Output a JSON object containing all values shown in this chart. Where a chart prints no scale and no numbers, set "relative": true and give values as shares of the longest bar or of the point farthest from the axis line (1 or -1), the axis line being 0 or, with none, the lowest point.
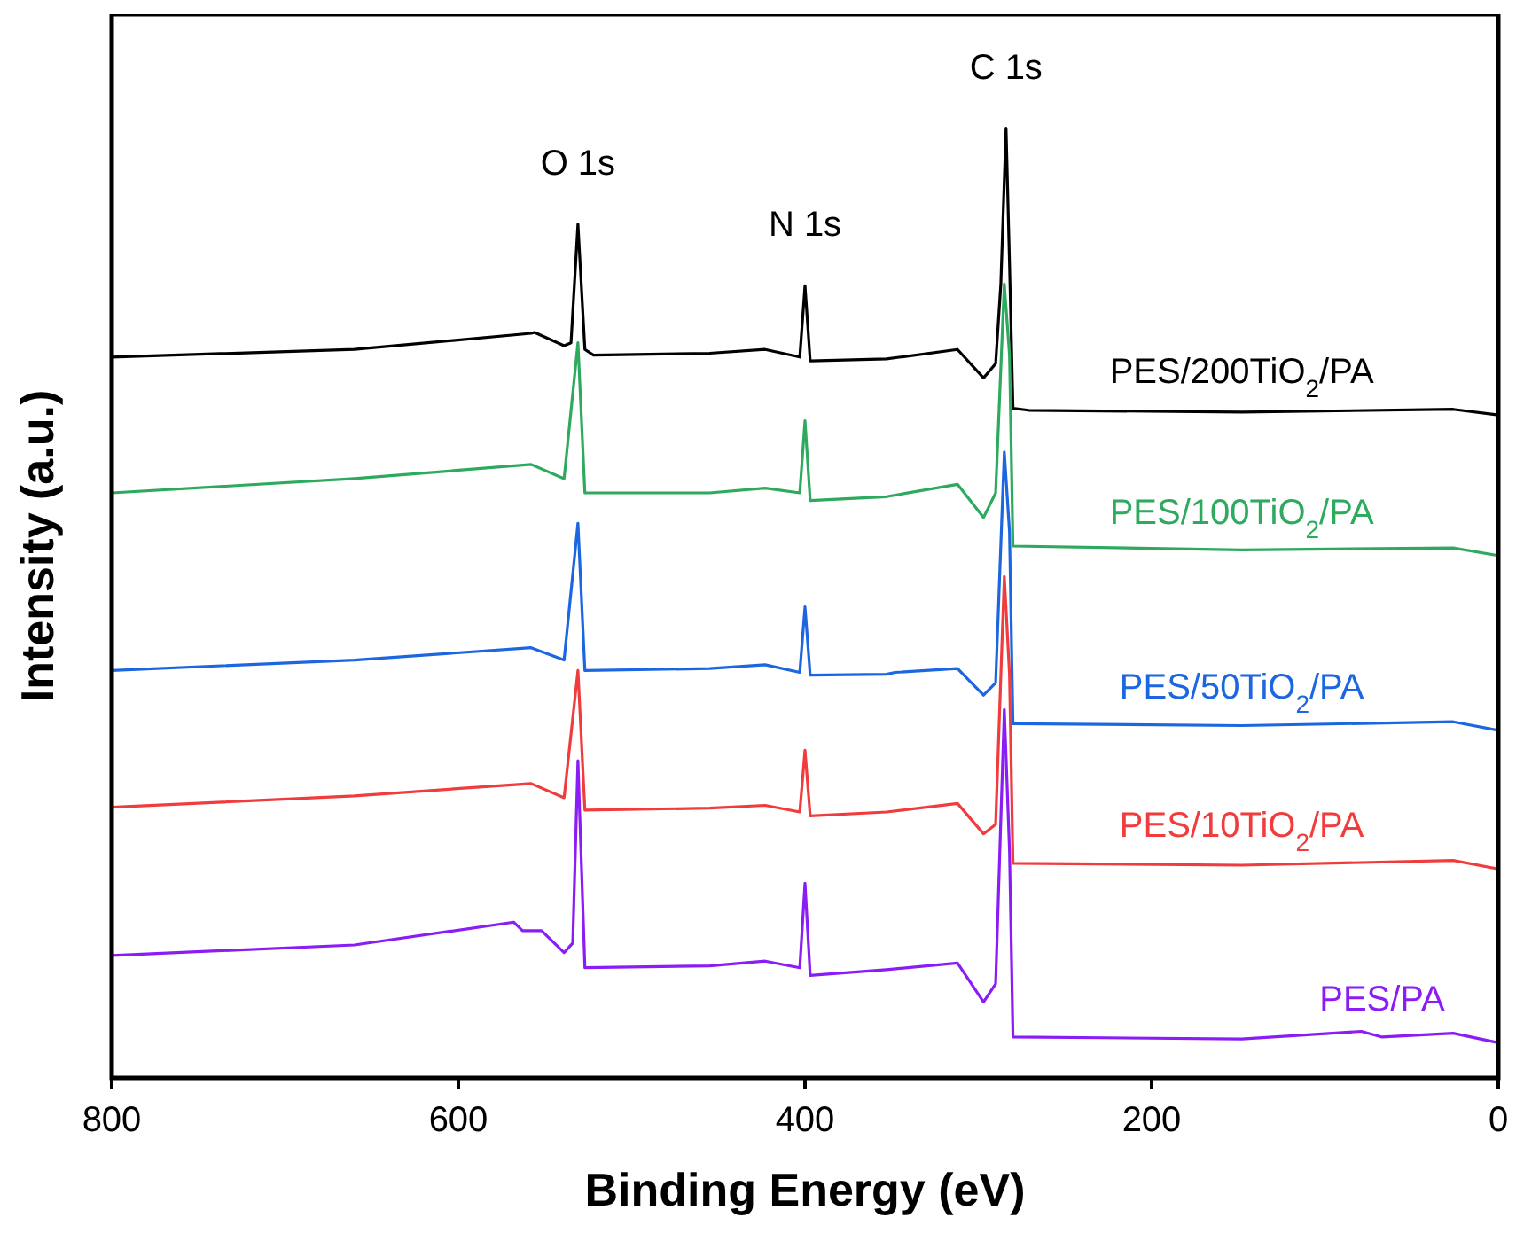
{
  "chart_data": {
    "type": "line",
    "relative": true,
    "xlabel": "Binding Energy (eV)",
    "ylabel": "Intensity (a.u.)",
    "xlim": [
      800,
      0
    ],
    "xticks": [
      800,
      600,
      400,
      200,
      0
    ],
    "grid": false,
    "annotations": [
      {
        "text": "O 1s",
        "x": 531,
        "y": 0.899
      },
      {
        "text": "N 1s",
        "x": 400,
        "y": 0.834
      },
      {
        "text": "C 1s",
        "x": 284,
        "y": 1
      }
    ],
    "series": [
      {
        "name": "PES/200TiO$_{2}$/PA",
        "color": "#000000",
        "x": [
          800,
          660,
          558,
          556,
          539,
          535,
          531,
          527,
          522,
          455,
          423,
          403,
          400,
          397,
          353,
          312,
          297,
          290,
          287,
          284,
          282,
          280,
          271,
          148,
          26,
          0
        ],
        "values": [
          0.759,
          0.767,
          0.784,
          0.785,
          0.771,
          0.774,
          0.899,
          0.767,
          0.761,
          0.763,
          0.767,
          0.759,
          0.834,
          0.755,
          0.757,
          0.767,
          0.737,
          0.752,
          0.836,
          1,
          0.858,
          0.705,
          0.703,
          0.701,
          0.704,
          0.698
        ]
      },
      {
        "name": "PES/100TiO$_{2}$/PA",
        "color": "#2eaa5e",
        "x": [
          800,
          660,
          558,
          539,
          531,
          527,
          455,
          423,
          403,
          400,
          397,
          353,
          312,
          297,
          290,
          285,
          282,
          280,
          148,
          26,
          0
        ],
        "values": [
          0.616,
          0.631,
          0.646,
          0.631,
          0.774,
          0.616,
          0.616,
          0.621,
          0.616,
          0.692,
          0.608,
          0.612,
          0.625,
          0.59,
          0.616,
          0.836,
          0.761,
          0.56,
          0.556,
          0.558,
          0.55
        ]
      },
      {
        "name": "PES/50TiO$_{2}$/PA",
        "color": "#1c66e0",
        "x": [
          800,
          660,
          558,
          539,
          531,
          527,
          455,
          423,
          403,
          400,
          397,
          353,
          348,
          312,
          297,
          290,
          285,
          282,
          280,
          148,
          26,
          0
        ],
        "values": [
          0.429,
          0.44,
          0.453,
          0.44,
          0.584,
          0.429,
          0.431,
          0.435,
          0.427,
          0.496,
          0.424,
          0.425,
          0.427,
          0.431,
          0.403,
          0.416,
          0.659,
          0.575,
          0.373,
          0.371,
          0.375,
          0.366
        ]
      },
      {
        "name": "PES/10TiO$_{2}$/PA",
        "color": "#f03c3c",
        "x": [
          800,
          660,
          558,
          539,
          531,
          527,
          455,
          423,
          403,
          400,
          397,
          353,
          312,
          297,
          290,
          285,
          282,
          280,
          148,
          26,
          0
        ],
        "values": [
          0.285,
          0.297,
          0.31,
          0.295,
          0.429,
          0.282,
          0.284,
          0.287,
          0.28,
          0.345,
          0.276,
          0.28,
          0.289,
          0.257,
          0.267,
          0.528,
          0.425,
          0.226,
          0.224,
          0.229,
          0.22
        ]
      },
      {
        "name": "PES/PA",
        "color": "#8a1cf5",
        "x": [
          800,
          660,
          568,
          563,
          552,
          539,
          534,
          531,
          527,
          455,
          423,
          403,
          400,
          397,
          353,
          312,
          297,
          290,
          285,
          282,
          280,
          148,
          79,
          67,
          26,
          0
        ],
        "values": [
          0.129,
          0.14,
          0.164,
          0.155,
          0.155,
          0.132,
          0.142,
          0.334,
          0.116,
          0.118,
          0.123,
          0.116,
          0.205,
          0.108,
          0.114,
          0.121,
          0.08,
          0.099,
          0.388,
          0.239,
          0.043,
          0.041,
          0.049,
          0.043,
          0.047,
          0.037
        ]
      }
    ]
  }
}
